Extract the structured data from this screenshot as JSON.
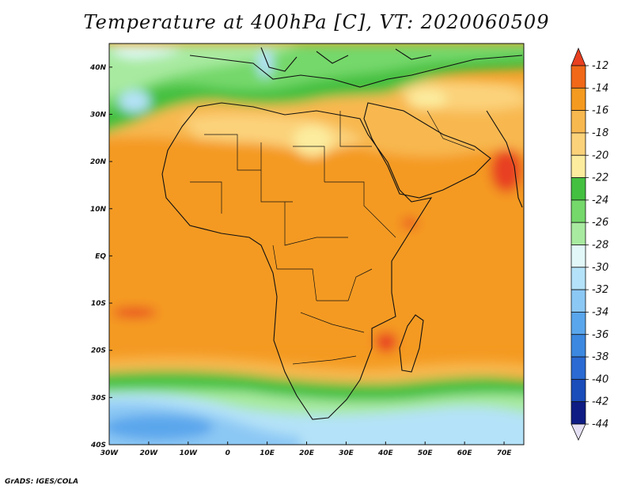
{
  "title": "Temperature at 400hPa [C], VT: 2020060509",
  "credit": "GrADS: IGES/COLA",
  "lat_labels": [
    "40N",
    "30N",
    "20N",
    "10N",
    "EQ",
    "10S",
    "20S",
    "30S",
    "40S"
  ],
  "lon_labels": [
    "30W",
    "20W",
    "10W",
    "0",
    "10E",
    "20E",
    "30E",
    "40E",
    "50E",
    "60E",
    "70E"
  ],
  "colorbar": {
    "labels": [
      "-12",
      "-14",
      "-16",
      "-18",
      "-20",
      "-22",
      "-24",
      "-26",
      "-28",
      "-30",
      "-32",
      "-34",
      "-36",
      "-38",
      "-40",
      "-42",
      "-44"
    ],
    "colors": [
      "#e84020",
      "#f06818",
      "#f49a20",
      "#f8b850",
      "#fbd27a",
      "#fcec9e",
      "#44c040",
      "#74d86a",
      "#a8eaa0",
      "#e2f8f8",
      "#b4e2f8",
      "#8cc8f4",
      "#5aa6ec",
      "#3c88e0",
      "#2a6ad2",
      "#1a4cba",
      "#0e1c84"
    ]
  },
  "map": {
    "lon_range": [
      -30,
      75
    ],
    "lat_range": [
      -40,
      45
    ],
    "field": "temperature",
    "units": "C",
    "level": "400hPa"
  }
}
